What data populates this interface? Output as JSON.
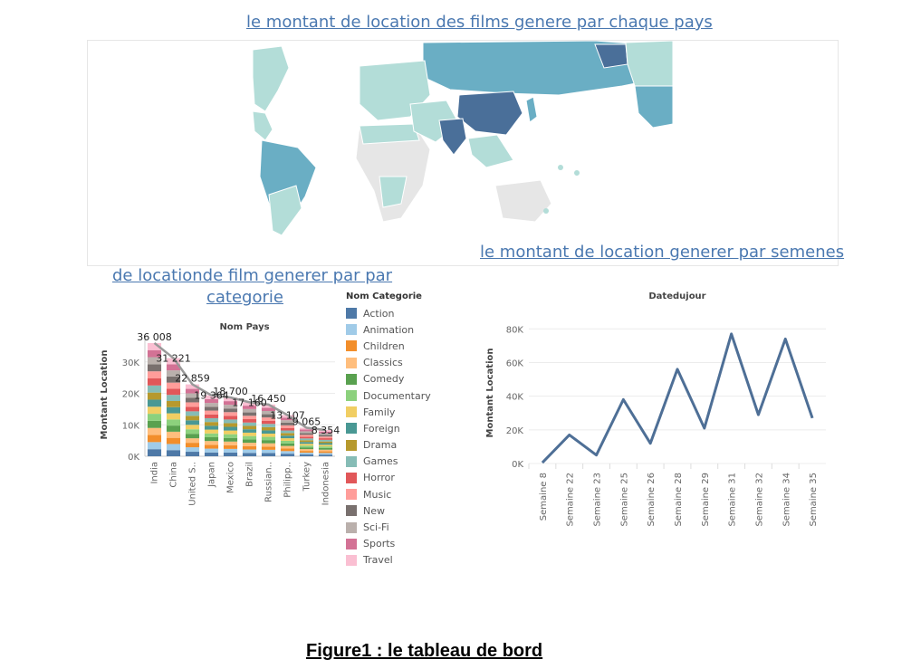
{
  "titles": {
    "map": "le montant de location des films genere par chaque pays",
    "week": "le montant de location generer par semenes",
    "category_line1": "de locationde film generer par par",
    "category_line2": "categorie"
  },
  "caption": "Figure1 : le tableau de bord",
  "map": {
    "land_color": "#e6e6e6",
    "high_color": "#4a6f99",
    "mid_color": "#6aaec4",
    "low_color": "#b3ddd8"
  },
  "chart_data": [
    {
      "type": "bar",
      "stacked": true,
      "title": "Nom Pays",
      "ylabel": "Montant Location",
      "ylim": [
        0,
        38000
      ],
      "yticks": [
        "0K",
        "10K",
        "20K",
        "30K"
      ],
      "categories": [
        "India",
        "China",
        "United S..",
        "Japan",
        "Mexico",
        "Brazil",
        "Russian..",
        "Philipp..",
        "Turkey",
        "Indonesia"
      ],
      "totals": [
        36008,
        31221,
        22859,
        19364,
        18700,
        17160,
        16450,
        13107,
        9065,
        8354
      ],
      "data_labels": [
        "36 008",
        "31 221",
        "22 859",
        "19 364",
        "18 700",
        "17 160",
        "16 450",
        "13 107",
        "9 065",
        "8 354"
      ],
      "legend_title": "Nom Categorie",
      "series": [
        {
          "name": "Action",
          "color": "#4e79a7"
        },
        {
          "name": "Animation",
          "color": "#a0cbe8"
        },
        {
          "name": "Children",
          "color": "#f28e2b"
        },
        {
          "name": "Classics",
          "color": "#ffbe7d"
        },
        {
          "name": "Comedy",
          "color": "#59a14f"
        },
        {
          "name": "Documentary",
          "color": "#8cd17d"
        },
        {
          "name": "Family",
          "color": "#f1ce63"
        },
        {
          "name": "Foreign",
          "color": "#499894"
        },
        {
          "name": "Drama",
          "color": "#b6992d"
        },
        {
          "name": "Games",
          "color": "#86bcb6"
        },
        {
          "name": "Horror",
          "color": "#e15759"
        },
        {
          "name": "Music",
          "color": "#ff9d9a"
        },
        {
          "name": "New",
          "color": "#79706e"
        },
        {
          "name": "Sci-Fi",
          "color": "#bab0ac"
        },
        {
          "name": "Sports",
          "color": "#d37295"
        },
        {
          "name": "Travel",
          "color": "#fabfd2"
        }
      ],
      "trend_line": true
    },
    {
      "type": "line",
      "title": "Datedujour",
      "ylabel": "Montant Location",
      "ylim": [
        0,
        85000
      ],
      "yticks": [
        "0K",
        "20K",
        "40K",
        "60K",
        "80K"
      ],
      "categories": [
        "Semaine 8",
        "Semaine 22",
        "Semaine 23",
        "Semaine 25",
        "Semaine 26",
        "Semaine 28",
        "Semaine 29",
        "Semaine 31",
        "Semaine 32",
        "Semaine 34",
        "Semaine 35"
      ],
      "values": [
        500,
        17000,
        5000,
        38000,
        12000,
        56000,
        21000,
        77000,
        29000,
        74000,
        27000
      ],
      "color": "#4e6f96"
    }
  ]
}
